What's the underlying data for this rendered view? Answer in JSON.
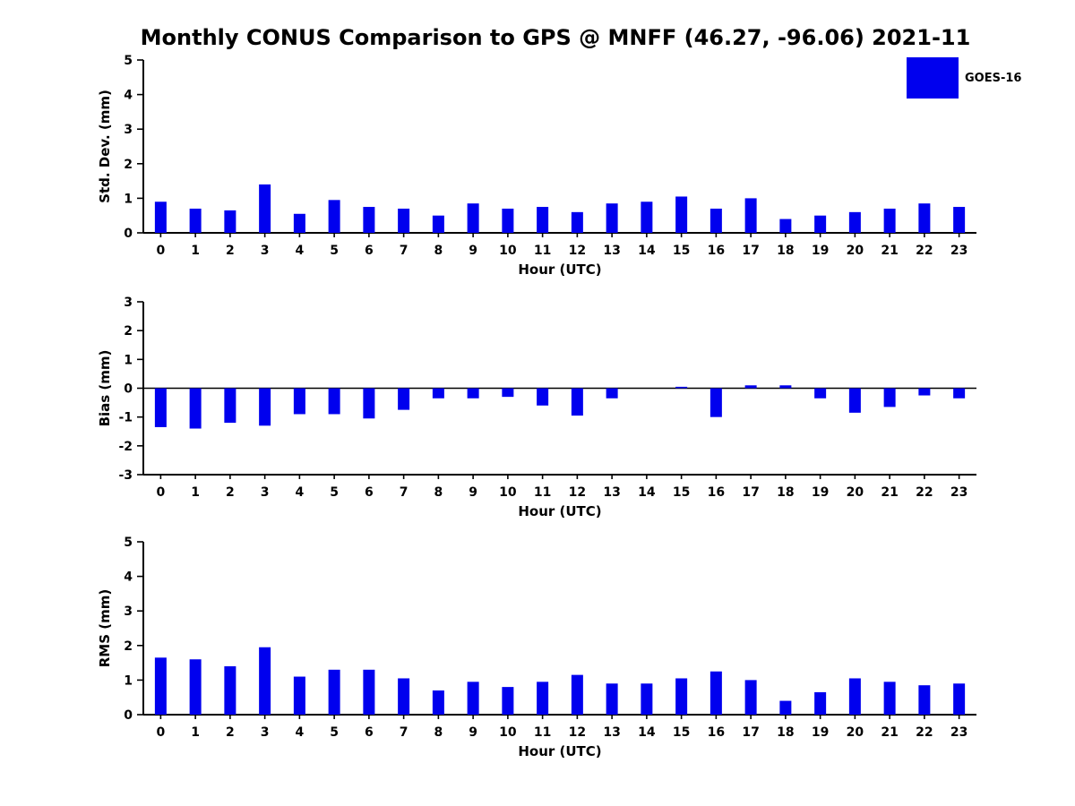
{
  "title": "Monthly CONUS Comparison to GPS @ MNFF (46.27, -96.06) 2021-11",
  "legend": {
    "label": "GOES-16",
    "color": "#0000EE"
  },
  "chart_data": [
    {
      "type": "bar",
      "title": "",
      "ylabel": "Std. Dev. (mm)",
      "xlabel": "Hour (UTC)",
      "ylim": [
        0,
        5
      ],
      "yticks": [
        0,
        1,
        2,
        3,
        4,
        5
      ],
      "grid": false,
      "legend_position": "top-right",
      "categories": [
        "0",
        "1",
        "2",
        "3",
        "4",
        "5",
        "6",
        "7",
        "8",
        "9",
        "10",
        "11",
        "12",
        "13",
        "14",
        "15",
        "16",
        "17",
        "18",
        "19",
        "20",
        "21",
        "22",
        "23"
      ],
      "series": [
        {
          "name": "GOES-16",
          "color": "#0000EE",
          "values": [
            0.9,
            0.7,
            0.65,
            1.4,
            0.55,
            0.95,
            0.75,
            0.7,
            0.5,
            0.85,
            0.7,
            0.75,
            0.6,
            0.85,
            0.9,
            1.05,
            0.7,
            1.0,
            0.4,
            0.5,
            0.6,
            0.7,
            0.85,
            0.75
          ]
        }
      ]
    },
    {
      "type": "bar",
      "title": "",
      "ylabel": "Bias (mm)",
      "xlabel": "Hour (UTC)",
      "ylim": [
        -3,
        3
      ],
      "yticks": [
        -3,
        -2,
        -1,
        0,
        1,
        2,
        3
      ],
      "grid": false,
      "legend_position": "none",
      "categories": [
        "0",
        "1",
        "2",
        "3",
        "4",
        "5",
        "6",
        "7",
        "8",
        "9",
        "10",
        "11",
        "12",
        "13",
        "14",
        "15",
        "16",
        "17",
        "18",
        "19",
        "20",
        "21",
        "22",
        "23"
      ],
      "series": [
        {
          "name": "GOES-16",
          "color": "#0000EE",
          "values": [
            -1.35,
            -1.4,
            -1.2,
            -1.3,
            -0.9,
            -0.9,
            -1.05,
            -0.75,
            -0.35,
            -0.35,
            -0.3,
            -0.6,
            -0.95,
            -0.35,
            0.0,
            0.05,
            -1.0,
            0.1,
            0.1,
            -0.35,
            -0.85,
            -0.65,
            -0.25,
            -0.35
          ]
        }
      ]
    },
    {
      "type": "bar",
      "title": "",
      "ylabel": "RMS (mm)",
      "xlabel": "Hour (UTC)",
      "ylim": [
        0,
        5
      ],
      "yticks": [
        0,
        1,
        2,
        3,
        4,
        5
      ],
      "grid": false,
      "legend_position": "none",
      "categories": [
        "0",
        "1",
        "2",
        "3",
        "4",
        "5",
        "6",
        "7",
        "8",
        "9",
        "10",
        "11",
        "12",
        "13",
        "14",
        "15",
        "16",
        "17",
        "18",
        "19",
        "20",
        "21",
        "22",
        "23"
      ],
      "series": [
        {
          "name": "GOES-16",
          "color": "#0000EE",
          "values": [
            1.65,
            1.6,
            1.4,
            1.95,
            1.1,
            1.3,
            1.3,
            1.05,
            0.7,
            0.95,
            0.8,
            0.95,
            1.15,
            0.9,
            0.9,
            1.05,
            1.25,
            1.0,
            0.4,
            0.65,
            1.05,
            0.95,
            0.85,
            0.9
          ]
        }
      ]
    }
  ]
}
